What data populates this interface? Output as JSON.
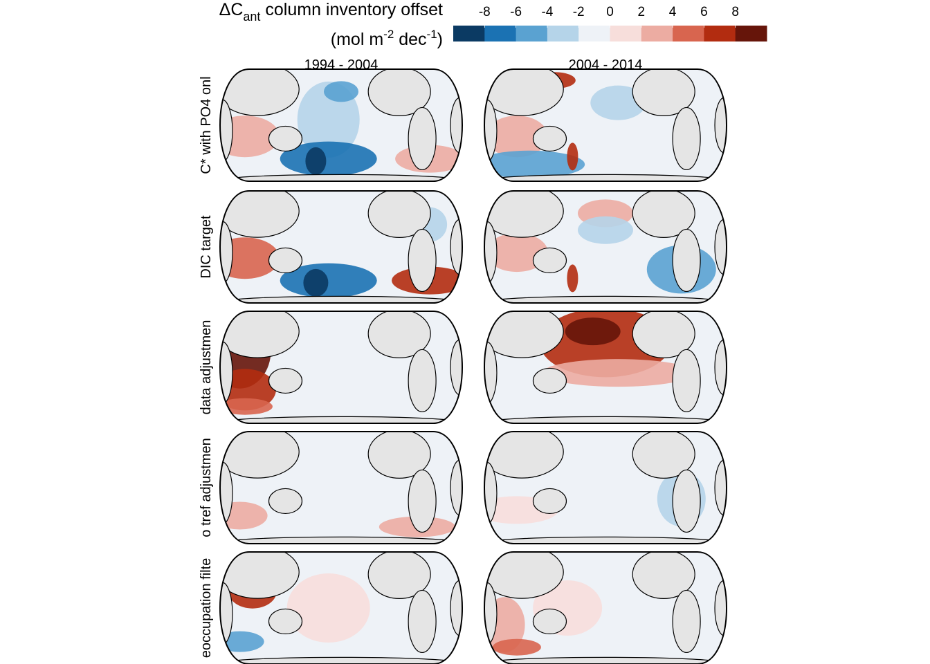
{
  "legend": {
    "title_parts": [
      "ΔC",
      "ant",
      " column inventory offset"
    ],
    "unit_parts": [
      "(mol m",
      "-2",
      " dec",
      "-1",
      ")"
    ],
    "lim": [
      -10,
      10
    ],
    "ticks": [
      -8,
      -6,
      -4,
      -2,
      0,
      2,
      4,
      6,
      8
    ],
    "colors": [
      "#0b3a63",
      "#1b72b3",
      "#5aa2d1",
      "#b5d4e9",
      "#eef2f7",
      "#f7dedb",
      "#ecaca2",
      "#d8654f",
      "#b22c10",
      "#66150a"
    ]
  },
  "columns": [
    "1994 - 2004",
    "2004 - 2014"
  ],
  "rows": [
    "C* with PO4 onl",
    "DIC target",
    "data adjustmen",
    "o tref adjustmen",
    "eoccupation filte"
  ]
}
